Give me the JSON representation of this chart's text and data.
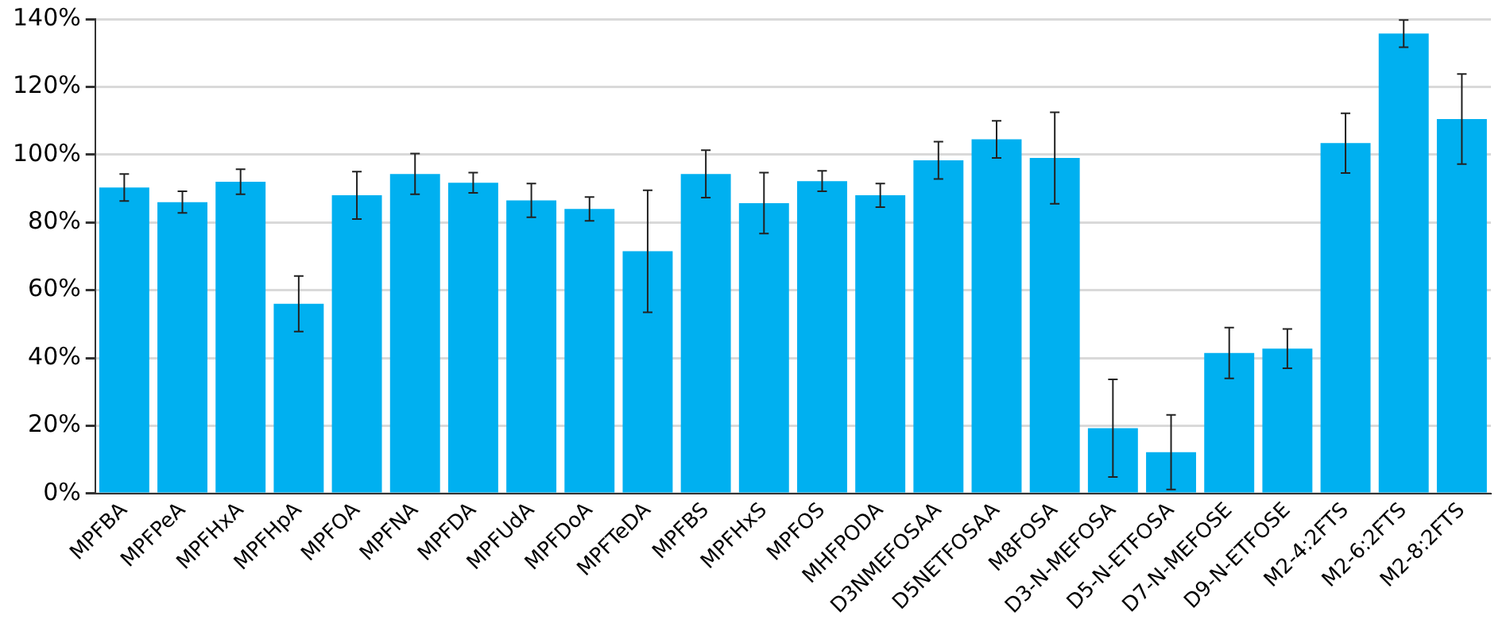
{
  "chart_data": {
    "type": "bar",
    "categories": [
      "MPFBA",
      "MPFPeA",
      "MPFHxA",
      "MPFHpA",
      "MPFOA",
      "MPFNA",
      "MPFDA",
      "MPFUdA",
      "MPFDoA",
      "MPFTeDA",
      "MPFBS",
      "MPFHxS",
      "MPFOS",
      "MHFPODA",
      "D3NMEFOSAA",
      "D5NETFOSAA",
      "M8FOSA",
      "D3-N-MEFOSA",
      "D5-N-ETFOSA",
      "D7-N-MEFOSE",
      "D9-N-ETFOSE",
      "M2-4:2FTS",
      "M2-6:2FTS",
      "M2-8:2FTS"
    ],
    "values": [
      90.3,
      86,
      92,
      56,
      88,
      94.3,
      91.7,
      86.5,
      84,
      71.5,
      94.3,
      85.7,
      92.2,
      88,
      98.3,
      104.5,
      99,
      19.3,
      12.2,
      41.5,
      42.8,
      103.4,
      135.7,
      110.5
    ],
    "errors": [
      4,
      3.2,
      3.7,
      8.2,
      7,
      6,
      3,
      5,
      3.5,
      18,
      7,
      9,
      3,
      3.5,
      5.5,
      5.5,
      13.5,
      14.4,
      11,
      7.5,
      5.8,
      8.8,
      4,
      13.3
    ],
    "color": "#00b0f0",
    "ylim": [
      0,
      140
    ],
    "yticks": [
      {
        "value": 0,
        "label": "0%"
      },
      {
        "value": 20,
        "label": "20%"
      },
      {
        "value": 40,
        "label": "40%"
      },
      {
        "value": 60,
        "label": "60%"
      },
      {
        "value": 80,
        "label": "80%"
      },
      {
        "value": 100,
        "label": "100%"
      },
      {
        "value": 120,
        "label": "120%"
      },
      {
        "value": 140,
        "label": "140%"
      }
    ],
    "grid": "y",
    "legend": false
  }
}
